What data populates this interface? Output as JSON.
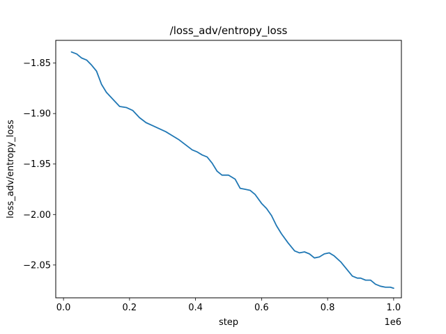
{
  "chart_data": {
    "type": "line",
    "title": "/loss_adv/entropy_loss",
    "xlabel": "step",
    "ylabel": "loss_adv/entropy_loss",
    "x_offset_label": "1e6",
    "xlim": [
      -0.0235,
      1.0235
    ],
    "ylim": [
      -2.0825,
      -1.8275
    ],
    "xticks": [
      0.0,
      0.2,
      0.4,
      0.6,
      0.8,
      1.0
    ],
    "xtick_labels": [
      "0.0",
      "0.2",
      "0.4",
      "0.6",
      "0.8",
      "1.0"
    ],
    "yticks": [
      -1.85,
      -1.9,
      -1.95,
      -2.0,
      -2.05
    ],
    "ytick_labels": [
      "−1.85",
      "−1.90",
      "−1.95",
      "−2.00",
      "−2.05"
    ],
    "grid": false,
    "line_color": "#1f77b4",
    "series": [
      {
        "x": [
          0.024,
          0.04,
          0.055,
          0.07,
          0.085,
          0.1,
          0.115,
          0.13,
          0.15,
          0.17,
          0.19,
          0.21,
          0.23,
          0.25,
          0.27,
          0.29,
          0.31,
          0.33,
          0.35,
          0.37,
          0.39,
          0.405,
          0.42,
          0.435,
          0.45,
          0.465,
          0.48,
          0.5,
          0.52,
          0.535,
          0.55,
          0.565,
          0.58,
          0.6,
          0.615,
          0.63,
          0.645,
          0.66,
          0.68,
          0.7,
          0.715,
          0.73,
          0.745,
          0.76,
          0.775,
          0.79,
          0.805,
          0.82,
          0.84,
          0.86,
          0.875,
          0.89,
          0.9,
          0.915,
          0.93,
          0.945,
          0.96,
          0.975,
          0.99,
          1.0
        ],
        "y": [
          -1.839,
          -1.841,
          -1.845,
          -1.847,
          -1.852,
          -1.858,
          -1.871,
          -1.879,
          -1.886,
          -1.893,
          -1.894,
          -1.897,
          -1.904,
          -1.909,
          -1.912,
          -1.915,
          -1.918,
          -1.922,
          -1.926,
          -1.931,
          -1.936,
          -1.938,
          -1.941,
          -1.943,
          -1.949,
          -1.957,
          -1.961,
          -1.961,
          -1.965,
          -1.974,
          -1.975,
          -1.976,
          -1.98,
          -1.989,
          -1.994,
          -2.001,
          -2.011,
          -2.019,
          -2.028,
          -2.036,
          -2.038,
          -2.037,
          -2.039,
          -2.043,
          -2.042,
          -2.039,
          -2.038,
          -2.041,
          -2.047,
          -2.055,
          -2.061,
          -2.063,
          -2.063,
          -2.065,
          -2.065,
          -2.069,
          -2.071,
          -2.072,
          -2.072,
          -2.073
        ]
      }
    ]
  }
}
